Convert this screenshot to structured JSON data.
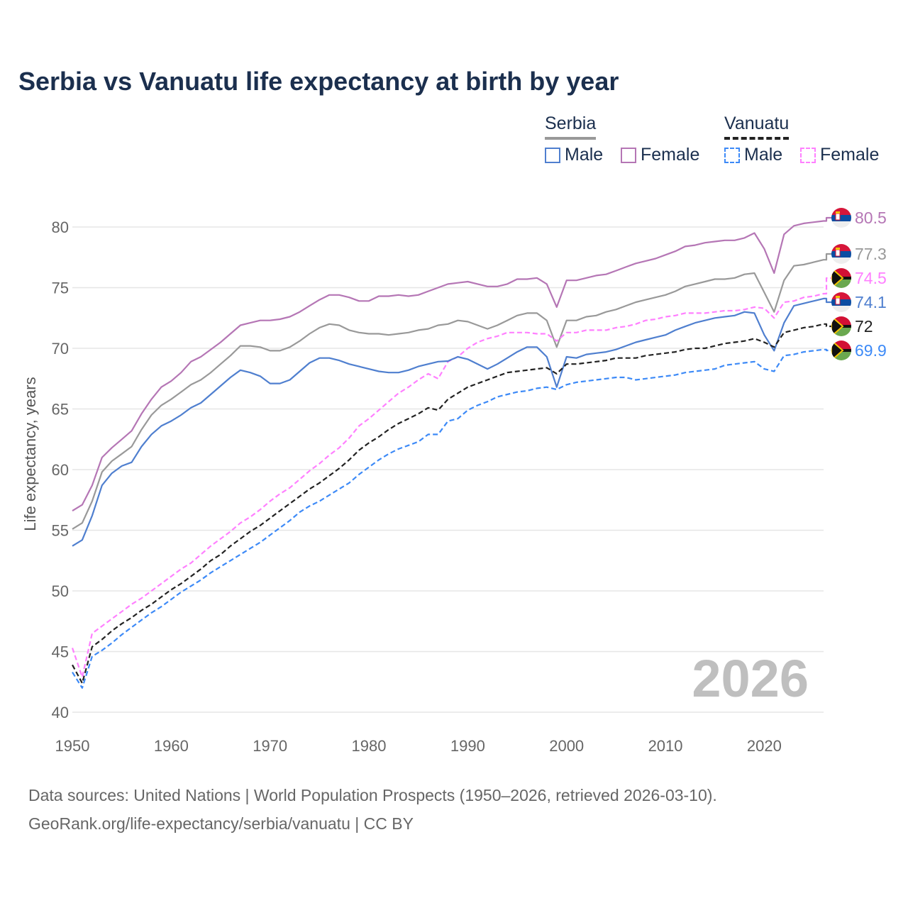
{
  "title": "Serbia vs Vanuatu life expectancy at birth by year",
  "legend": {
    "groups": [
      {
        "label": "Serbia",
        "items": [
          "Male",
          "Female"
        ]
      },
      {
        "label": "Vanuatu",
        "items": [
          "Male",
          "Female"
        ]
      }
    ]
  },
  "year_watermark": "2026",
  "footer": {
    "line1": "Data sources: United Nations | World Population Prospects (1950–2026, retrieved 2026-03-10).",
    "line2": "GeoRank.org/life-expectancy/serbia/vanuatu | CC BY"
  },
  "chart_data": {
    "type": "line",
    "title": "Serbia vs Vanuatu life expectancy at birth by year",
    "xlabel": "",
    "ylabel": "Life expectancy, years",
    "xlim": [
      1950,
      2026
    ],
    "ylim": [
      40,
      82
    ],
    "xticks": [
      1950,
      1960,
      1970,
      1980,
      1990,
      2000,
      2010,
      2020
    ],
    "yticks": [
      40,
      45,
      50,
      55,
      60,
      65,
      70,
      75,
      80
    ],
    "grid": true,
    "legend": "top-right",
    "x_start": 1950,
    "series": [
      {
        "name": "Serbia Female",
        "country": "serbia",
        "color": "#b576b5",
        "dash": false,
        "end_label": "80.5",
        "values": [
          56.6,
          57.1,
          58.7,
          61.0,
          61.8,
          62.5,
          63.2,
          64.6,
          65.8,
          66.8,
          67.3,
          68.0,
          68.9,
          69.3,
          69.9,
          70.5,
          71.2,
          71.9,
          72.1,
          72.3,
          72.3,
          72.4,
          72.6,
          73.0,
          73.5,
          74.0,
          74.4,
          74.4,
          74.2,
          73.9,
          73.9,
          74.3,
          74.3,
          74.4,
          74.3,
          74.4,
          74.7,
          75.0,
          75.3,
          75.4,
          75.5,
          75.3,
          75.1,
          75.1,
          75.3,
          75.7,
          75.7,
          75.8,
          75.3,
          73.4,
          75.6,
          75.6,
          75.8,
          76.0,
          76.1,
          76.4,
          76.7,
          77.0,
          77.2,
          77.4,
          77.7,
          78.0,
          78.4,
          78.5,
          78.7,
          78.8,
          78.9,
          78.9,
          79.1,
          79.5,
          78.2,
          76.2,
          79.4,
          80.1,
          80.3,
          80.4,
          80.5
        ]
      },
      {
        "name": "Serbia",
        "country": "serbia",
        "color": "#999999",
        "dash": false,
        "end_label": "77.3",
        "values": [
          55.1,
          55.6,
          57.4,
          59.8,
          60.7,
          61.3,
          61.9,
          63.3,
          64.5,
          65.3,
          65.8,
          66.4,
          67.0,
          67.4,
          68.0,
          68.7,
          69.4,
          70.2,
          70.2,
          70.1,
          69.8,
          69.8,
          70.1,
          70.6,
          71.2,
          71.7,
          72.0,
          71.9,
          71.5,
          71.3,
          71.2,
          71.2,
          71.1,
          71.2,
          71.3,
          71.5,
          71.6,
          71.9,
          72.0,
          72.3,
          72.2,
          71.9,
          71.6,
          71.9,
          72.3,
          72.7,
          72.9,
          72.9,
          72.3,
          70.1,
          72.3,
          72.3,
          72.6,
          72.7,
          73.0,
          73.2,
          73.5,
          73.8,
          74.0,
          74.2,
          74.4,
          74.7,
          75.1,
          75.3,
          75.5,
          75.7,
          75.7,
          75.8,
          76.1,
          76.2,
          74.6,
          73.0,
          75.6,
          76.8,
          76.9,
          77.1,
          77.3
        ]
      },
      {
        "name": "Vanuatu Female",
        "country": "vanuatu",
        "color": "#ff80ff",
        "dash": true,
        "end_label": "74.5",
        "values": [
          45.3,
          42.9,
          46.5,
          47.1,
          47.7,
          48.3,
          48.9,
          49.4,
          50.0,
          50.6,
          51.2,
          51.8,
          52.3,
          53.0,
          53.7,
          54.3,
          54.9,
          55.6,
          56.1,
          56.7,
          57.4,
          58.0,
          58.5,
          59.2,
          59.9,
          60.5,
          61.2,
          61.8,
          62.6,
          63.6,
          64.2,
          64.9,
          65.6,
          66.3,
          66.8,
          67.4,
          67.9,
          67.5,
          68.9,
          69.3,
          70.0,
          70.5,
          70.8,
          71.0,
          71.3,
          71.3,
          71.3,
          71.2,
          71.2,
          70.6,
          71.3,
          71.3,
          71.5,
          71.5,
          71.5,
          71.7,
          71.8,
          72.0,
          72.3,
          72.4,
          72.6,
          72.7,
          72.9,
          72.9,
          72.9,
          73.0,
          73.1,
          73.1,
          73.2,
          73.4,
          73.3,
          72.5,
          73.8,
          73.9,
          74.2,
          74.3,
          74.5
        ]
      },
      {
        "name": "Serbia Male",
        "country": "serbia",
        "color": "#4f7fcf",
        "dash": false,
        "end_label": "74.1",
        "values": [
          53.7,
          54.2,
          56.2,
          58.7,
          59.7,
          60.3,
          60.6,
          61.9,
          62.9,
          63.6,
          64.0,
          64.5,
          65.1,
          65.5,
          66.2,
          66.9,
          67.6,
          68.2,
          68.0,
          67.7,
          67.1,
          67.1,
          67.4,
          68.1,
          68.8,
          69.2,
          69.2,
          69.0,
          68.7,
          68.5,
          68.3,
          68.1,
          68.0,
          68.0,
          68.2,
          68.5,
          68.7,
          68.9,
          68.95,
          69.3,
          69.1,
          68.7,
          68.3,
          68.7,
          69.2,
          69.7,
          70.1,
          70.1,
          69.3,
          66.8,
          69.3,
          69.2,
          69.5,
          69.6,
          69.7,
          69.9,
          70.2,
          70.5,
          70.7,
          70.9,
          71.1,
          71.5,
          71.8,
          72.1,
          72.3,
          72.5,
          72.6,
          72.7,
          73.0,
          72.9,
          71.1,
          69.8,
          72.1,
          73.5,
          73.7,
          73.9,
          74.1
        ]
      },
      {
        "name": "Vanuatu",
        "country": "vanuatu",
        "color": "#222222",
        "dash": true,
        "end_label": "72",
        "values": [
          43.9,
          42.4,
          45.4,
          46.0,
          46.7,
          47.3,
          47.8,
          48.4,
          48.9,
          49.5,
          50.1,
          50.6,
          51.2,
          51.8,
          52.5,
          53.0,
          53.7,
          54.3,
          54.9,
          55.4,
          56.0,
          56.6,
          57.2,
          57.8,
          58.4,
          58.9,
          59.5,
          60.1,
          60.8,
          61.6,
          62.2,
          62.7,
          63.3,
          63.8,
          64.2,
          64.6,
          65.1,
          64.9,
          65.8,
          66.3,
          66.8,
          67.1,
          67.4,
          67.7,
          68.0,
          68.1,
          68.2,
          68.3,
          68.4,
          67.9,
          68.7,
          68.7,
          68.8,
          68.9,
          69.0,
          69.2,
          69.2,
          69.2,
          69.4,
          69.5,
          69.6,
          69.7,
          69.9,
          70.0,
          70.0,
          70.2,
          70.4,
          70.5,
          70.6,
          70.8,
          70.5,
          70.1,
          71.3,
          71.5,
          71.7,
          71.8,
          72.0
        ]
      },
      {
        "name": "Vanuatu Male",
        "country": "vanuatu",
        "color": "#3d8af7",
        "dash": true,
        "end_label": "69.9",
        "values": [
          43.3,
          42.0,
          44.6,
          45.1,
          45.7,
          46.4,
          47.0,
          47.6,
          48.2,
          48.7,
          49.3,
          49.9,
          50.4,
          50.9,
          51.5,
          52.0,
          52.5,
          53.0,
          53.5,
          54.0,
          54.6,
          55.2,
          55.8,
          56.5,
          57.0,
          57.4,
          57.9,
          58.4,
          58.9,
          59.6,
          60.2,
          60.8,
          61.3,
          61.7,
          62.0,
          62.3,
          62.9,
          62.9,
          64.0,
          64.2,
          64.9,
          65.3,
          65.6,
          66.0,
          66.2,
          66.4,
          66.5,
          66.7,
          66.8,
          66.6,
          67.0,
          67.2,
          67.3,
          67.4,
          67.5,
          67.6,
          67.6,
          67.4,
          67.5,
          67.6,
          67.7,
          67.8,
          68.0,
          68.1,
          68.2,
          68.3,
          68.6,
          68.7,
          68.8,
          68.9,
          68.3,
          68.1,
          69.4,
          69.5,
          69.7,
          69.8,
          69.9
        ]
      }
    ]
  }
}
